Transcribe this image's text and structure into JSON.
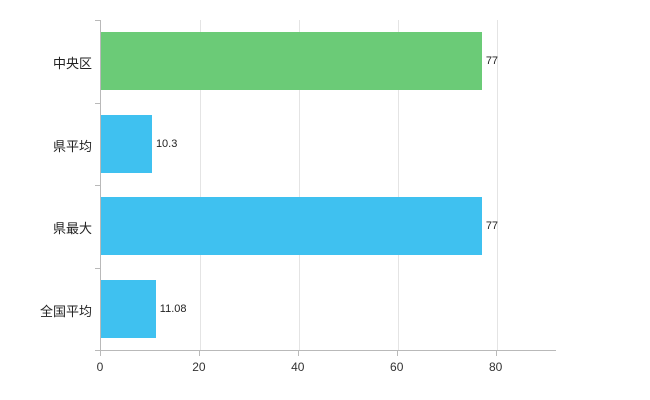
{
  "chart_data": {
    "type": "bar",
    "orientation": "horizontal",
    "title": "",
    "xlabel": "",
    "ylabel": "",
    "categories": [
      "中央区",
      "県平均",
      "県最大",
      "全国平均"
    ],
    "values": [
      77,
      10.3,
      77,
      11.08
    ],
    "value_labels": [
      "77",
      "10.3",
      "77",
      "11.08"
    ],
    "bar_colors": [
      "#6bcb77",
      "#3fc1f0",
      "#3fc1f0",
      "#3fc1f0"
    ],
    "xlim": [
      0,
      92
    ],
    "x_ticks": [
      0,
      20,
      40,
      60,
      80
    ],
    "grid": "vertical-only",
    "legend": "none"
  },
  "colors": {
    "axis": "#b9b9b9",
    "gridline": "#e4e4e4",
    "green_bar": "#6bcb77",
    "blue_bar": "#3fc1f0",
    "label_text": "#222222",
    "tick_text": "#333333",
    "background": "#ffffff"
  }
}
